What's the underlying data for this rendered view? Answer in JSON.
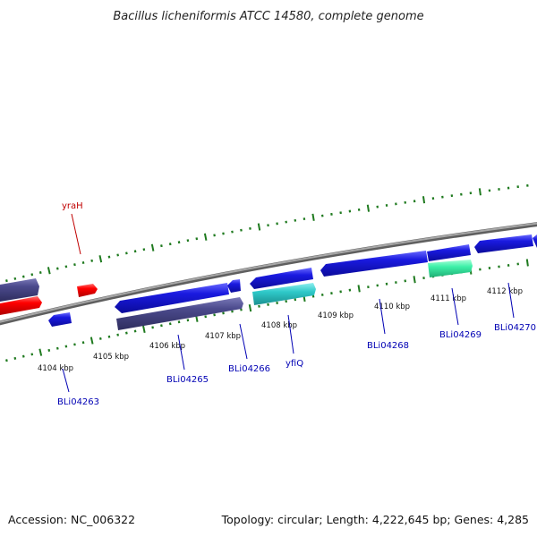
{
  "title": "Bacillus licheniformis ATCC 14580, complete genome",
  "footer": {
    "accession": "Accession: NC_006322",
    "summary": "Topology: circular; Length: 4,222,645 bp; Genes: 4,285"
  },
  "colors": {
    "backbone": "#8a8a8a",
    "tick": "#1f7a1f",
    "forward_cds": "#1a1ae0",
    "reverse_cds": "#4b4a8c",
    "rna": "#ff0000",
    "cyan_feature": "#2fc9c9",
    "mint_feature": "#3df0a8",
    "label_blue": "#0000b4",
    "label_red": "#c00000"
  },
  "scale_labels": [
    "4104 kbp",
    "4105 kbp",
    "4106 kbp",
    "4107 kbp",
    "4108 kbp",
    "4109 kbp",
    "4110 kbp",
    "4111 kbp",
    "4112 kbp"
  ],
  "gene_labels": [
    {
      "name": "yraH",
      "color": "red"
    },
    {
      "name": "BLi04263",
      "color": "blue"
    },
    {
      "name": "BLi04265",
      "color": "blue"
    },
    {
      "name": "BLi04266",
      "color": "blue"
    },
    {
      "name": "yfiQ",
      "color": "blue"
    },
    {
      "name": "BLi04268",
      "color": "blue"
    },
    {
      "name": "BLi04269",
      "color": "blue"
    },
    {
      "name": "BLi04270",
      "color": "blue"
    }
  ]
}
